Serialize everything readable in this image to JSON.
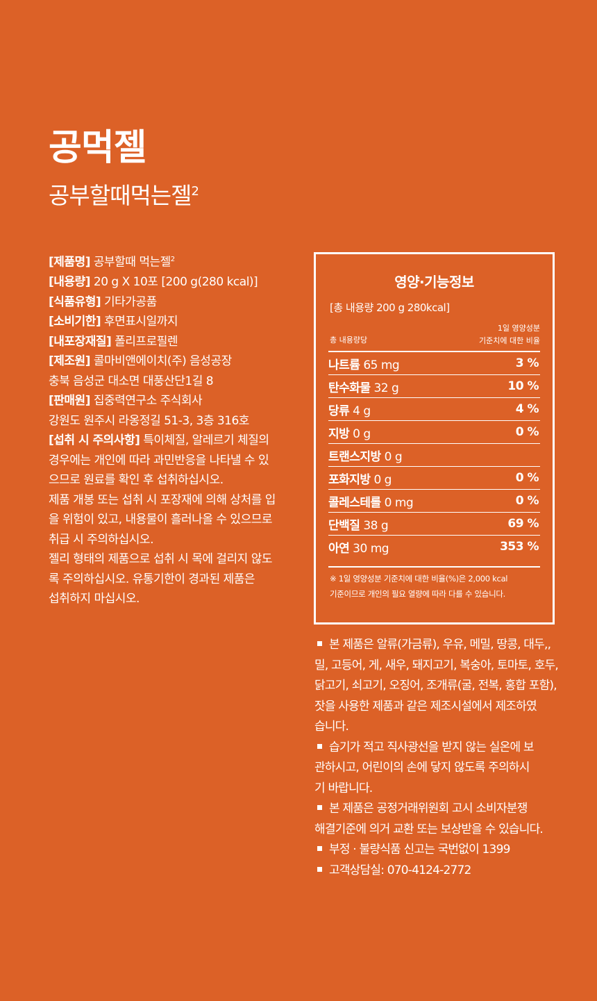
{
  "header": {
    "title": "공먹젤",
    "subtitle": "공부할때먹는젤",
    "subtitle_sup": "2"
  },
  "info": {
    "product_name_key": "[제품명]",
    "product_name_value": " 공부할때 먹는젤",
    "product_name_sup": "2",
    "volume_key": "[내용량]",
    "volume_value": " 20 g X 10포 [200 g(280 kcal)]",
    "type_key": "[식품유형]",
    "type_value": " 기타가공품",
    "expiry_key": "[소비기한]",
    "expiry_value": " 후면표시일까지",
    "packaging_key": "[내포장재질]",
    "packaging_value": " 폴리프로필렌",
    "maker_key": "[제조원]",
    "maker_value": " 콜마비앤에이치(주) 음성공장",
    "maker_address": "충북 음성군 대소면 대풍산단1길 8",
    "seller_key": "[판매원]",
    "seller_value": " 집중력연구소 주식회사",
    "seller_address": "강원도 원주시 라옹정길 51-3, 3층 316호",
    "caution_key": "[섭취 시 주의사항]",
    "caution_lines": [
      " 특이체질, 알레르기 체질의",
      "경우에는 개인에 따라 과민반응을 나타낼 수 있",
      "으므로 원료를 확인 후 섭취하십시오.",
      "제품 개봉 또는 섭취 시 포장재에 의해 상처를 입",
      "을 위험이 있고, 내용물이 흘러나올 수 있으므로",
      "취급 시 주의하십시오.",
      "젤리 형태의 제품으로 섭취 시 목에 걸리지 않도",
      "록 주의하십시오. 유통기한이 경과된 제품은",
      "섭취하지 마십시오."
    ]
  },
  "nutrition": {
    "title": "영양·기능정보",
    "total": "[총 내용량 200 g  280kcal]",
    "header_left": "총 내용량당",
    "header_right_1": "1일 영양성분",
    "header_right_2": "기준치에 대한 비율",
    "rows": [
      {
        "name": "나트륨",
        "amount": " 65 mg",
        "percent": "3 %"
      },
      {
        "name": "탄수화물",
        "amount": " 32 g",
        "percent": "10 %"
      },
      {
        "name": "당류",
        "amount": " 4 g",
        "percent": "4 %"
      },
      {
        "name": "지방",
        "amount": " 0 g",
        "percent": "0 %"
      },
      {
        "name": "트랜스지방",
        "amount": " 0 g",
        "percent": ""
      },
      {
        "name": "포화지방",
        "amount": " 0 g",
        "percent": "0 %"
      },
      {
        "name": "콜레스테롤",
        "amount": " 0 mg",
        "percent": "0 %"
      },
      {
        "name": "단백질",
        "amount": " 38 g",
        "percent": "69 %"
      },
      {
        "name": "아연",
        "amount": " 30 mg",
        "percent": "353 %"
      }
    ],
    "note_1": "※ 1일 영양성분 기준치에 대한 비율(%)은 2,000 kcal",
    "note_2": "기준이므로 개인의 필요 열량에 따라 다를 수 있습니다."
  },
  "notices": [
    "본 제품은 알류(가금류), 우유, 메밀, 땅콩, 대두,,",
    "밀, 고등어, 게, 새우, 돼지고기, 복숭아, 토마토, 호두,",
    "닭고기, 쇠고기, 오징어, 조개류(굴, 전복, 홍합 포함),",
    "잣을 사용한 제품과 같은 제조시설에서 제조하였",
    "습니다.",
    "습기가 적고 직사광선을 받지 않는 실온에 보",
    "관하시고, 어린이의 손에 닿지 않도록 주의하시",
    "기 바랍니다.",
    "본 제품은 공정거래위원회 고시 소비자분쟁",
    "해결기준에 의거 교환 또는 보상받을 수 있습니다.",
    "부정 · 불량식품 신고는 국번없이 1399",
    "고객상담실: 070-4124-2772"
  ],
  "colors": {
    "background": "#dc6127",
    "text": "#ffffff"
  }
}
